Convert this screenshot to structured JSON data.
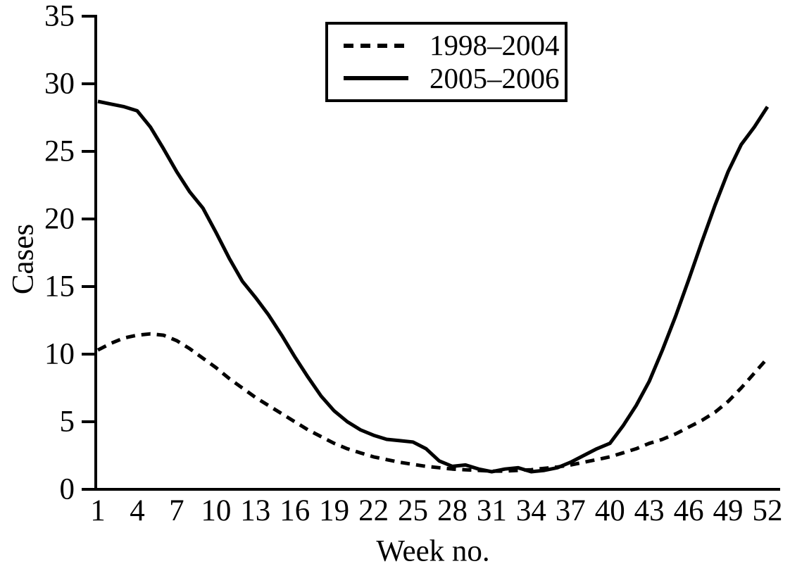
{
  "chart_data": {
    "type": "line",
    "title": "",
    "xlabel": "Week no.",
    "ylabel": "Cases",
    "ylim": [
      0,
      35
    ],
    "xlim": [
      1,
      52
    ],
    "yticks": [
      0,
      5,
      10,
      15,
      20,
      25,
      30,
      35
    ],
    "xticks": [
      1,
      4,
      7,
      10,
      13,
      16,
      19,
      22,
      25,
      28,
      31,
      34,
      37,
      40,
      43,
      46,
      49,
      52
    ],
    "grid": false,
    "legend_position": "top-center-inside",
    "background": "#ffffff",
    "line_color": "#000000",
    "x_weeks": [
      1,
      2,
      3,
      4,
      5,
      6,
      7,
      8,
      9,
      10,
      11,
      12,
      13,
      14,
      15,
      16,
      17,
      18,
      19,
      20,
      21,
      22,
      23,
      24,
      25,
      26,
      27,
      28,
      29,
      30,
      31,
      32,
      33,
      34,
      35,
      36,
      37,
      38,
      39,
      40,
      41,
      42,
      43,
      44,
      45,
      46,
      47,
      48,
      49,
      50,
      51,
      52
    ],
    "series": [
      {
        "name": "1998–2004",
        "style": "dashed",
        "values": [
          10.3,
          10.8,
          11.2,
          11.4,
          11.5,
          11.4,
          11.0,
          10.4,
          9.7,
          9.0,
          8.2,
          7.5,
          6.8,
          6.2,
          5.6,
          5.0,
          4.4,
          3.9,
          3.4,
          3.0,
          2.7,
          2.4,
          2.2,
          2.0,
          1.85,
          1.7,
          1.6,
          1.5,
          1.45,
          1.4,
          1.35,
          1.35,
          1.4,
          1.45,
          1.55,
          1.65,
          1.8,
          2.0,
          2.2,
          2.4,
          2.7,
          3.0,
          3.4,
          3.7,
          4.1,
          4.6,
          5.1,
          5.7,
          6.5,
          7.5,
          8.6,
          9.7
        ]
      },
      {
        "name": "2005–2006",
        "style": "solid",
        "values": [
          28.7,
          28.5,
          28.3,
          28.0,
          26.8,
          25.2,
          23.5,
          22.0,
          20.8,
          19.0,
          17.1,
          15.4,
          14.2,
          12.9,
          11.4,
          9.8,
          8.3,
          6.9,
          5.8,
          5.0,
          4.4,
          4.0,
          3.7,
          3.6,
          3.5,
          3.0,
          2.1,
          1.7,
          1.8,
          1.5,
          1.3,
          1.5,
          1.6,
          1.3,
          1.4,
          1.6,
          2.0,
          2.5,
          3.0,
          3.4,
          4.7,
          6.2,
          8.0,
          10.3,
          12.8,
          15.5,
          18.3,
          21.0,
          23.5,
          25.5,
          26.8,
          28.3
        ]
      }
    ]
  }
}
